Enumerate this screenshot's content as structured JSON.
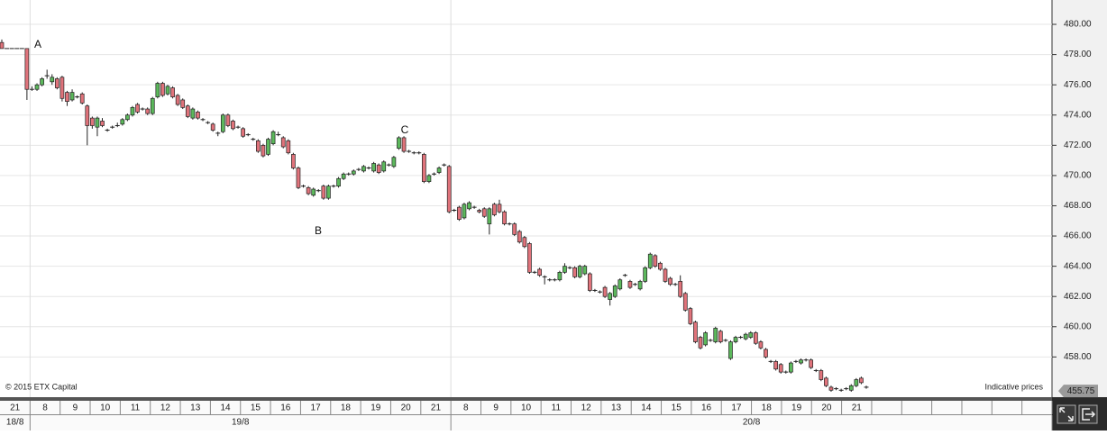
{
  "chart_data": {
    "type": "candlestick",
    "up_color": "#5cb85c",
    "down_color": "#e0737b",
    "ylim": [
      455.34,
      481.61
    ],
    "yticks": [
      {
        "value": 458,
        "label": "458.00"
      },
      {
        "value": 460,
        "label": "460.00"
      },
      {
        "value": 462,
        "label": "462.00"
      },
      {
        "value": 464,
        "label": "464.00"
      },
      {
        "value": 466,
        "label": "466.00"
      },
      {
        "value": 468,
        "label": "468.00"
      },
      {
        "value": 470,
        "label": "470.00"
      },
      {
        "value": 472,
        "label": "472.00"
      },
      {
        "value": 474,
        "label": "474.00"
      },
      {
        "value": 476,
        "label": "476.00"
      },
      {
        "value": 478,
        "label": "478.00"
      },
      {
        "value": 480,
        "label": "480.00"
      }
    ],
    "grid": true,
    "current_price": 455.75,
    "categories": [
      "21",
      "8",
      "9",
      "10",
      "11",
      "12",
      "13",
      "14",
      "15",
      "16",
      "17",
      "18",
      "19",
      "20",
      "21",
      "8",
      "9",
      "10",
      "11",
      "12",
      "13",
      "14",
      "15",
      "16",
      "17",
      "18",
      "19",
      "20",
      "21",
      null,
      null,
      null,
      null,
      null,
      null
    ],
    "dates": [
      "18/8",
      "19/8",
      "20/8"
    ],
    "annotations": [
      "A",
      "B",
      "C"
    ],
    "source": "© 2015 ETX Capital",
    "note": "Indicative prices",
    "candles": [
      [
        478.8,
        479.0,
        478.4,
        478.4
      ],
      [
        478.4,
        478.4,
        478.4,
        478.4
      ],
      [
        478.4,
        478.4,
        478.4,
        478.4
      ],
      [
        478.4,
        478.4,
        478.4,
        478.4
      ],
      [
        478.4,
        478.4,
        478.4,
        478.4
      ],
      [
        478.4,
        478.4,
        475.0,
        475.7
      ],
      [
        475.7,
        475.9,
        475.6,
        475.7
      ],
      [
        475.7,
        476.1,
        475.6,
        476.0
      ],
      [
        476.0,
        476.5,
        475.9,
        476.4
      ],
      [
        476.6,
        477.0,
        476.4,
        476.6
      ],
      [
        476.2,
        476.7,
        476.0,
        476.5
      ],
      [
        476.4,
        476.5,
        475.7,
        475.8
      ],
      [
        476.5,
        476.6,
        474.9,
        475.1
      ],
      [
        475.5,
        475.6,
        474.6,
        474.9
      ],
      [
        475.0,
        475.7,
        474.9,
        475.5
      ],
      [
        475.2,
        475.3,
        475.1,
        475.2
      ],
      [
        475.4,
        475.5,
        474.7,
        474.8
      ],
      [
        474.6,
        474.7,
        472.0,
        473.3
      ],
      [
        473.8,
        473.9,
        473.1,
        473.3
      ],
      [
        473.2,
        473.9,
        472.6,
        473.8
      ],
      [
        473.6,
        473.8,
        473.2,
        473.3
      ],
      [
        473.0,
        473.1,
        472.9,
        473.0
      ],
      [
        473.2,
        473.3,
        473.1,
        473.2
      ],
      [
        473.3,
        473.5,
        473.2,
        473.3
      ],
      [
        473.4,
        473.8,
        473.3,
        473.7
      ],
      [
        473.7,
        474.1,
        473.6,
        474.0
      ],
      [
        474.0,
        474.6,
        473.9,
        474.5
      ],
      [
        474.7,
        474.8,
        474.1,
        474.2
      ],
      [
        474.4,
        474.5,
        474.3,
        474.4
      ],
      [
        474.4,
        474.5,
        474.0,
        474.1
      ],
      [
        474.1,
        475.2,
        474.0,
        475.1
      ],
      [
        475.2,
        476.2,
        475.1,
        476.1
      ],
      [
        476.1,
        476.2,
        475.2,
        475.3
      ],
      [
        475.4,
        476.0,
        475.3,
        475.9
      ],
      [
        475.8,
        475.9,
        475.1,
        475.2
      ],
      [
        475.3,
        475.4,
        474.6,
        474.7
      ],
      [
        475.0,
        475.1,
        474.4,
        474.5
      ],
      [
        474.6,
        474.7,
        473.8,
        473.9
      ],
      [
        473.8,
        474.5,
        473.7,
        474.4
      ],
      [
        474.2,
        474.3,
        473.7,
        473.8
      ],
      [
        473.7,
        473.8,
        473.6,
        473.7
      ],
      [
        473.5,
        473.6,
        473.4,
        473.5
      ],
      [
        473.4,
        473.5,
        472.9,
        473.0
      ],
      [
        472.8,
        472.9,
        472.6,
        472.8
      ],
      [
        472.9,
        474.1,
        472.8,
        474.0
      ],
      [
        474.0,
        474.1,
        473.2,
        473.3
      ],
      [
        473.6,
        473.7,
        473.0,
        473.1
      ],
      [
        473.2,
        473.3,
        473.1,
        473.2
      ],
      [
        473.1,
        473.2,
        472.5,
        472.6
      ],
      [
        472.7,
        472.8,
        472.6,
        472.7
      ],
      [
        472.4,
        472.5,
        472.3,
        472.4
      ],
      [
        472.3,
        472.4,
        471.5,
        471.6
      ],
      [
        472.0,
        472.1,
        471.2,
        471.3
      ],
      [
        471.4,
        472.5,
        471.3,
        472.4
      ],
      [
        472.1,
        473.0,
        472.0,
        472.9
      ],
      [
        472.7,
        472.9,
        472.6,
        472.7
      ],
      [
        472.5,
        472.6,
        471.8,
        471.9
      ],
      [
        472.3,
        472.4,
        471.4,
        471.5
      ],
      [
        471.4,
        471.5,
        470.4,
        470.5
      ],
      [
        470.5,
        470.6,
        469.1,
        469.2
      ],
      [
        469.3,
        469.4,
        469.2,
        469.3
      ],
      [
        469.2,
        469.3,
        468.7,
        468.8
      ],
      [
        468.7,
        469.2,
        468.6,
        469.1
      ],
      [
        469.0,
        469.1,
        468.9,
        469.0
      ],
      [
        469.3,
        469.4,
        468.4,
        468.5
      ],
      [
        468.5,
        469.4,
        468.4,
        469.3
      ],
      [
        469.3,
        469.4,
        469.2,
        469.3
      ],
      [
        469.3,
        469.9,
        469.2,
        469.8
      ],
      [
        469.8,
        470.2,
        469.7,
        470.1
      ],
      [
        470.1,
        470.2,
        470.0,
        470.1
      ],
      [
        470.1,
        470.4,
        470.0,
        470.3
      ],
      [
        470.4,
        470.5,
        470.3,
        470.4
      ],
      [
        470.3,
        470.7,
        470.2,
        470.6
      ],
      [
        470.5,
        470.6,
        470.4,
        470.5
      ],
      [
        470.3,
        470.9,
        470.2,
        470.8
      ],
      [
        470.7,
        470.8,
        470.1,
        470.2
      ],
      [
        470.3,
        471.0,
        470.2,
        470.9
      ],
      [
        470.7,
        470.8,
        470.6,
        470.7
      ],
      [
        470.6,
        471.3,
        470.5,
        471.2
      ],
      [
        471.8,
        472.6,
        471.7,
        472.5
      ],
      [
        472.5,
        472.6,
        471.5,
        471.6
      ],
      [
        471.6,
        471.7,
        471.5,
        471.6
      ],
      [
        471.5,
        471.6,
        471.4,
        471.5
      ],
      [
        471.5,
        471.6,
        471.4,
        471.5
      ],
      [
        471.4,
        471.5,
        469.5,
        469.6
      ],
      [
        469.6,
        470.1,
        469.5,
        470.0
      ],
      [
        470.1,
        470.2,
        470.0,
        470.1
      ],
      [
        470.2,
        470.6,
        470.1,
        470.5
      ],
      [
        470.7,
        470.8,
        470.6,
        470.7
      ],
      [
        470.6,
        470.7,
        467.5,
        467.6
      ],
      [
        467.7,
        467.8,
        467.6,
        467.7
      ],
      [
        467.9,
        468.0,
        467.0,
        467.1
      ],
      [
        467.2,
        468.2,
        467.1,
        468.1
      ],
      [
        467.8,
        468.3,
        467.7,
        468.2
      ],
      [
        467.9,
        468.0,
        467.8,
        467.9
      ],
      [
        467.7,
        467.8,
        467.5,
        467.6
      ],
      [
        467.8,
        467.9,
        467.2,
        467.3
      ],
      [
        466.8,
        467.9,
        466.1,
        467.8
      ],
      [
        468.1,
        468.2,
        467.3,
        467.4
      ],
      [
        468.1,
        468.4,
        467.5,
        467.6
      ],
      [
        467.6,
        467.7,
        466.7,
        466.8
      ],
      [
        466.8,
        466.9,
        466.7,
        466.8
      ],
      [
        466.8,
        466.9,
        466.0,
        466.1
      ],
      [
        466.3,
        466.4,
        465.5,
        465.6
      ],
      [
        465.9,
        466.0,
        465.2,
        465.3
      ],
      [
        465.5,
        465.6,
        463.5,
        463.6
      ],
      [
        463.6,
        463.7,
        463.5,
        463.6
      ],
      [
        463.8,
        463.9,
        463.3,
        463.4
      ],
      [
        463.3,
        463.4,
        462.8,
        463.3
      ],
      [
        463.1,
        463.2,
        463.0,
        463.1
      ],
      [
        463.1,
        463.2,
        463.0,
        463.1
      ],
      [
        463.1,
        463.7,
        463.0,
        463.6
      ],
      [
        463.6,
        464.2,
        463.5,
        464.0
      ],
      [
        463.9,
        464.0,
        463.8,
        463.9
      ],
      [
        463.9,
        464.0,
        463.2,
        463.3
      ],
      [
        463.3,
        464.1,
        463.2,
        464.0
      ],
      [
        463.5,
        464.1,
        463.4,
        464.0
      ],
      [
        463.5,
        463.6,
        462.3,
        462.4
      ],
      [
        462.4,
        462.5,
        462.3,
        462.4
      ],
      [
        462.3,
        462.4,
        462.2,
        462.3
      ],
      [
        462.6,
        462.7,
        461.9,
        462.0
      ],
      [
        461.8,
        462.3,
        461.4,
        462.2
      ],
      [
        462.0,
        462.8,
        461.9,
        462.7
      ],
      [
        462.5,
        463.2,
        462.4,
        463.1
      ],
      [
        463.4,
        463.5,
        463.3,
        463.4
      ],
      [
        463.0,
        463.1,
        462.5,
        462.6
      ],
      [
        462.8,
        462.9,
        462.7,
        462.8
      ],
      [
        462.5,
        463.1,
        462.4,
        463.0
      ],
      [
        463.0,
        464.0,
        462.9,
        463.9
      ],
      [
        463.9,
        464.9,
        463.8,
        464.8
      ],
      [
        464.7,
        464.8,
        463.9,
        464.0
      ],
      [
        464.2,
        464.3,
        463.7,
        463.8
      ],
      [
        463.8,
        463.9,
        462.9,
        463.0
      ],
      [
        463.2,
        463.3,
        462.7,
        462.8
      ],
      [
        462.8,
        462.9,
        462.7,
        462.8
      ],
      [
        463.0,
        463.4,
        461.9,
        462.0
      ],
      [
        462.2,
        462.3,
        461.0,
        461.1
      ],
      [
        461.2,
        461.3,
        460.1,
        460.2
      ],
      [
        460.3,
        460.4,
        458.9,
        459.0
      ],
      [
        459.3,
        459.4,
        458.5,
        458.6
      ],
      [
        458.8,
        459.7,
        458.7,
        459.6
      ],
      [
        459.1,
        459.2,
        459.0,
        459.1
      ],
      [
        459.0,
        460.0,
        458.9,
        459.9
      ],
      [
        459.7,
        459.8,
        458.9,
        459.0
      ],
      [
        459.1,
        459.2,
        459.0,
        459.1
      ],
      [
        457.9,
        459.1,
        457.8,
        459.0
      ],
      [
        459.0,
        459.4,
        458.9,
        459.3
      ],
      [
        459.3,
        459.4,
        459.2,
        459.3
      ],
      [
        459.2,
        459.6,
        459.1,
        459.5
      ],
      [
        459.3,
        459.7,
        459.2,
        459.6
      ],
      [
        459.6,
        459.7,
        458.8,
        458.9
      ],
      [
        459.0,
        459.1,
        458.5,
        458.6
      ],
      [
        458.5,
        458.6,
        457.9,
        458.0
      ],
      [
        457.7,
        457.8,
        457.6,
        457.7
      ],
      [
        457.7,
        457.8,
        457.1,
        457.2
      ],
      [
        457.5,
        457.6,
        456.9,
        457.0
      ],
      [
        457.0,
        457.1,
        456.9,
        457.0
      ],
      [
        457.0,
        457.7,
        456.9,
        457.6
      ],
      [
        457.7,
        457.8,
        457.6,
        457.7
      ],
      [
        457.6,
        457.9,
        457.5,
        457.8
      ],
      [
        457.8,
        457.9,
        457.7,
        457.8
      ],
      [
        457.8,
        457.9,
        457.2,
        457.3
      ],
      [
        457.1,
        457.2,
        457.0,
        457.1
      ],
      [
        457.1,
        457.2,
        456.4,
        456.5
      ],
      [
        456.6,
        456.7,
        456.0,
        456.1
      ],
      [
        456.0,
        456.1,
        455.7,
        455.8
      ],
      [
        455.9,
        456.0,
        455.8,
        455.9
      ],
      [
        455.8,
        455.9,
        455.7,
        455.8
      ],
      [
        455.9,
        456.0,
        455.8,
        455.9
      ],
      [
        455.8,
        456.2,
        455.7,
        456.1
      ],
      [
        456.1,
        456.6,
        456.0,
        456.5
      ],
      [
        456.6,
        456.7,
        456.2,
        456.3
      ],
      [
        456.0,
        456.1,
        455.9,
        456.0
      ]
    ]
  }
}
